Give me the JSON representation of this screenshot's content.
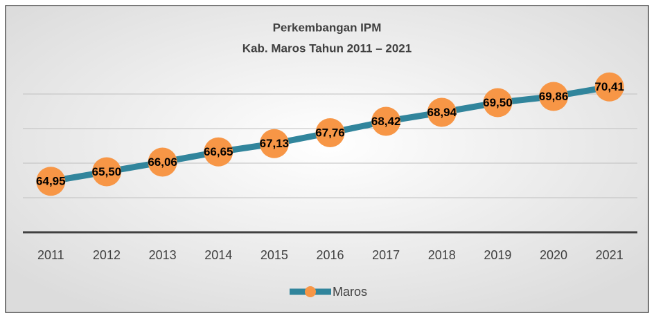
{
  "chart_data": {
    "type": "line",
    "title": "Perkembangan IPM",
    "subtitle": "Kab. Maros Tahun 2011 – 2021",
    "categories": [
      "2011",
      "2012",
      "2013",
      "2014",
      "2015",
      "2016",
      "2017",
      "2018",
      "2019",
      "2020",
      "2021"
    ],
    "series": [
      {
        "name": "Maros",
        "color": "#31859c",
        "marker_color": "#f79646",
        "values": [
          64.95,
          65.5,
          66.06,
          66.65,
          67.13,
          67.76,
          68.42,
          68.94,
          69.5,
          69.86,
          70.41
        ],
        "value_labels": [
          "64,95",
          "65,50",
          "66,06",
          "66,65",
          "67,13",
          "67,76",
          "68,42",
          "68,94",
          "69,50",
          "69,86",
          "70,41"
        ]
      }
    ],
    "ylim": [
      62,
      72
    ],
    "yticks": [
      62,
      64,
      66,
      68,
      70
    ],
    "ytick_labels": false,
    "grid": true,
    "legend": "bottom"
  }
}
